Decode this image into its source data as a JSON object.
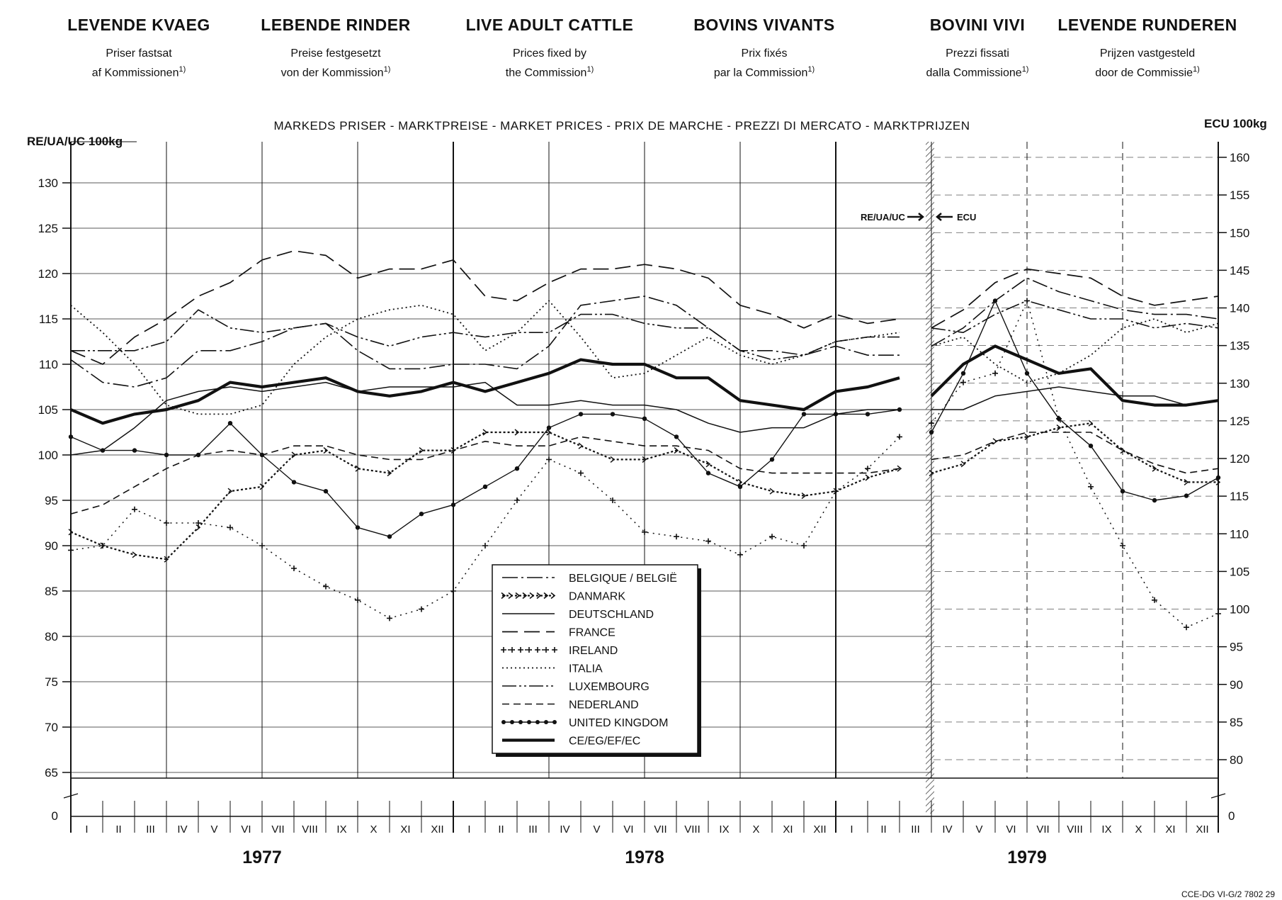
{
  "headers": [
    {
      "title": "LEVENDE KVAEG",
      "line1": "Priser fastsat",
      "line2": "af Kommissionen",
      "note": "1)"
    },
    {
      "title": "LEBENDE RINDER",
      "line1": "Preise festgesetzt",
      "line2": "von der Kommission",
      "note": "1)"
    },
    {
      "title": "LIVE ADULT CATTLE",
      "line1": "Prices fixed by",
      "line2": "the Commission",
      "note": "1)"
    },
    {
      "title": "BOVINS VIVANTS",
      "line1": "Prix fixés",
      "line2": "par la Commission",
      "note": "1)"
    },
    {
      "title": "BOVINI VIVI",
      "line1": "Prezzi fissati",
      "line2": "dalla Commissione",
      "note": "1)"
    },
    {
      "title": "LEVENDE RUNDEREN",
      "line1": "Prijzen vastgesteld",
      "line2": "door de Commissie",
      "note": "1)"
    }
  ],
  "source_ref": "CCE-DG VI-G/2 7802 29",
  "chart_data": {
    "type": "line",
    "title": "MARKEDS PRISER - MARKTPREISE - MARKET PRICES - PRIX DE MARCHE - PREZZI DI MERCATO - MARKTPRIJZEN",
    "ylabel_left": "RE/UA/UC 100kg",
    "ylabel_right": "ECU 100kg",
    "yticks_left": [
      65,
      70,
      75,
      80,
      85,
      90,
      95,
      100,
      105,
      110,
      115,
      120,
      125,
      130
    ],
    "yticks_right": [
      80,
      85,
      90,
      95,
      100,
      105,
      110,
      115,
      120,
      125,
      130,
      135,
      140,
      145,
      150,
      155,
      160
    ],
    "ylim_left": [
      65,
      130
    ],
    "ylim_right": [
      80,
      160
    ],
    "zero_label_left": "0",
    "zero_label_right": "0",
    "months": [
      "I",
      "II",
      "III",
      "IV",
      "V",
      "VI",
      "VII",
      "VIII",
      "IX",
      "X",
      "XI",
      "XII"
    ],
    "years": [
      "1977",
      "1978",
      "1979"
    ],
    "unit_change_labels": {
      "left": "RE/UA/UC",
      "right": "ECU"
    },
    "unit_change_after_index": 26,
    "grid": true,
    "legend_position": "bottom-center",
    "series": [
      {
        "name": "BELGIQUE / BELGIË",
        "style": "dashdot",
        "values": [
          110.5,
          108,
          107.5,
          108.5,
          111.5,
          111.5,
          112.5,
          114,
          114.5,
          111.5,
          109.5,
          109.5,
          110,
          110,
          109.5,
          112,
          116.5,
          117,
          117.5,
          116.5,
          114,
          111.5,
          111.5,
          111,
          112,
          111,
          111,
          112,
          114,
          117,
          119.5,
          118,
          117,
          116,
          115.5,
          115.5,
          115
        ]
      },
      {
        "name": "DANMARK",
        "style": "chevron",
        "values": [
          91.5,
          90,
          89,
          88.5,
          92,
          96,
          96.5,
          100,
          100.5,
          98.5,
          98,
          100.5,
          100.5,
          102.5,
          102.5,
          102.5,
          101,
          99.5,
          99.5,
          100.5,
          99,
          97,
          96,
          95.5,
          96,
          97.5,
          98.5,
          98,
          99,
          101.5,
          102,
          103,
          103.5,
          100.5,
          98.5,
          97,
          97
        ]
      },
      {
        "name": "DEUTSCHLAND",
        "style": "solid-thin",
        "values": [
          100,
          100.5,
          103,
          106,
          107,
          107.5,
          107,
          107.5,
          108,
          107,
          107.5,
          107.5,
          107.5,
          108,
          105.5,
          105.5,
          106,
          105.5,
          105.5,
          105,
          103.5,
          102.5,
          103,
          103,
          104.5,
          105,
          105,
          105,
          105,
          106.5,
          107,
          107.5,
          107,
          106.5,
          106.5,
          105.5,
          106
        ]
      },
      {
        "name": "FRANCE",
        "style": "longdash",
        "values": [
          111.5,
          110,
          113,
          115,
          117.5,
          119,
          121.5,
          122.5,
          122,
          119.5,
          120.5,
          120.5,
          121.5,
          117.5,
          117,
          119,
          120.5,
          120.5,
          121,
          120.5,
          119.5,
          116.5,
          115.5,
          114,
          115.5,
          114.5,
          115,
          114,
          116,
          119,
          120.5,
          120,
          119.5,
          117.5,
          116.5,
          117,
          117.5
        ]
      },
      {
        "name": "IRELAND",
        "style": "cross",
        "values": [
          89.5,
          90,
          94,
          92.5,
          92.5,
          92,
          90,
          87.5,
          85.5,
          84,
          82,
          83,
          85,
          90,
          95,
          99.5,
          98,
          95,
          91.5,
          91,
          90.5,
          89,
          91,
          90,
          96,
          98.5,
          102,
          103.5,
          108,
          109,
          117,
          104,
          96.5,
          90,
          84,
          81,
          82.5
        ]
      },
      {
        "name": "ITALIA",
        "style": "dotted",
        "values": [
          116.5,
          113.5,
          110,
          105.5,
          104.5,
          104.5,
          105.5,
          110,
          113,
          115,
          116,
          116.5,
          115.5,
          111.5,
          113.5,
          117,
          113,
          108.5,
          109,
          111,
          113,
          111,
          110,
          111,
          112.5,
          113,
          113.5,
          112,
          113,
          110,
          108,
          109,
          111,
          114,
          115,
          113.5,
          114.5
        ]
      },
      {
        "name": "LUXEMBOURG",
        "style": "dashdotdot",
        "values": [
          111.5,
          111.5,
          111.5,
          112.5,
          116,
          114,
          113.5,
          114,
          114.5,
          113,
          112,
          113,
          113.5,
          113,
          113.5,
          113.5,
          115.5,
          115.5,
          114.5,
          114,
          114,
          111.5,
          110.5,
          111,
          112.5,
          113,
          113,
          114,
          113.5,
          115.5,
          117,
          116,
          115,
          115,
          114,
          114.5,
          114
        ]
      },
      {
        "name": "NEDERLAND",
        "style": "dashed",
        "values": [
          93.5,
          94.5,
          96.5,
          98.5,
          100,
          100.5,
          100,
          101,
          101,
          100,
          99.5,
          99.5,
          100.5,
          101.5,
          101,
          101,
          102,
          101.5,
          101,
          101,
          100.5,
          98.5,
          98,
          98,
          98,
          98,
          98.5,
          99.5,
          100,
          101.5,
          102.5,
          102.5,
          102.5,
          100.5,
          99,
          98,
          98.5
        ]
      },
      {
        "name": "UNITED KINGDOM",
        "style": "dotted-circle",
        "values": [
          102,
          100.5,
          100.5,
          100,
          100,
          103.5,
          100,
          97,
          96,
          92,
          91,
          93.5,
          94.5,
          96.5,
          98.5,
          103,
          104.5,
          104.5,
          104,
          102,
          98,
          96.5,
          99.5,
          104.5,
          104.5,
          104.5,
          105,
          102.5,
          109,
          117,
          109,
          104,
          101,
          96,
          95,
          95.5,
          97.5
        ]
      },
      {
        "name": "CE/EG/EF/EC",
        "style": "solid-thick",
        "values": [
          105,
          103.5,
          104.5,
          105,
          106,
          108,
          107.5,
          108,
          108.5,
          107,
          106.5,
          107,
          108,
          107,
          108,
          109,
          110.5,
          110,
          110,
          108.5,
          108.5,
          106,
          105.5,
          105,
          107,
          107.5,
          108.5,
          106.5,
          110,
          112,
          110.5,
          109,
          109.5,
          106,
          105.5,
          105.5,
          106
        ]
      }
    ]
  }
}
